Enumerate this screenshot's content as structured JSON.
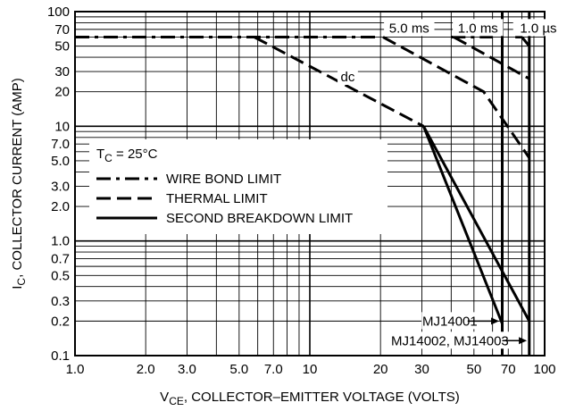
{
  "chart_data": {
    "type": "line",
    "x_scale": "log",
    "y_scale": "log",
    "xlim": [
      1,
      100
    ],
    "ylim": [
      0.1,
      100
    ],
    "grid": true,
    "xlabel": {
      "main": "V",
      "sub": "CE",
      "rest": ", COLLECTOR–EMITTER VOLTAGE (VOLTS)"
    },
    "ylabel": {
      "main": "I",
      "sub": "C",
      "rest": ", COLLECTOR CURRENT (AMP)"
    },
    "x_ticks": [
      {
        "value": 1,
        "label": "1.0"
      },
      {
        "value": 2,
        "label": "2.0"
      },
      {
        "value": 3,
        "label": "3.0"
      },
      {
        "value": 5,
        "label": "5.0"
      },
      {
        "value": 7,
        "label": "7.0"
      },
      {
        "value": 10,
        "label": "10"
      },
      {
        "value": 20,
        "label": "20"
      },
      {
        "value": 30,
        "label": "30"
      },
      {
        "value": 50,
        "label": "50"
      },
      {
        "value": 70,
        "label": "70"
      },
      {
        "value": 100,
        "label": "100"
      }
    ],
    "y_ticks": [
      {
        "value": 0.1,
        "label": "0.1"
      },
      {
        "value": 0.2,
        "label": "0.2"
      },
      {
        "value": 0.3,
        "label": "0.3"
      },
      {
        "value": 0.5,
        "label": "0.5"
      },
      {
        "value": 0.7,
        "label": "0.7"
      },
      {
        "value": 1,
        "label": "1.0"
      },
      {
        "value": 2,
        "label": "2.0"
      },
      {
        "value": 3,
        "label": "3.0"
      },
      {
        "value": 5,
        "label": "5.0"
      },
      {
        "value": 7,
        "label": "7.0"
      },
      {
        "value": 10,
        "label": "10"
      },
      {
        "value": 20,
        "label": "20"
      },
      {
        "value": 30,
        "label": "30"
      },
      {
        "value": 50,
        "label": "50"
      },
      {
        "value": 70,
        "label": "70"
      },
      {
        "value": 100,
        "label": "100"
      }
    ],
    "series": [
      {
        "style": "wire-bond",
        "points": [
          [
            1,
            60
          ],
          [
            20,
            60
          ]
        ]
      },
      {
        "style": "wire-bond",
        "points": [
          [
            40,
            60
          ],
          [
            60,
            60
          ]
        ]
      },
      {
        "style": "wire-bond",
        "points": [
          [
            75,
            60
          ],
          [
            80,
            60
          ]
        ]
      },
      {
        "style": "thermal",
        "points": [
          [
            5.8,
            60
          ],
          [
            30.5,
            10
          ]
        ]
      },
      {
        "style": "thermal",
        "points": [
          [
            20.5,
            60
          ],
          [
            55,
            20
          ],
          [
            86,
            5.3
          ]
        ]
      },
      {
        "style": "thermal",
        "points": [
          [
            41,
            60
          ],
          [
            86,
            26
          ]
        ]
      },
      {
        "style": "thermal",
        "points": [
          [
            80,
            60
          ],
          [
            86,
            50
          ]
        ]
      },
      {
        "style": "second-breakdown",
        "points": [
          [
            30.5,
            10
          ],
          [
            66,
            0.19
          ]
        ]
      },
      {
        "style": "second-breakdown",
        "points": [
          [
            30.5,
            10
          ],
          [
            86,
            0.2
          ]
        ]
      },
      {
        "style": "second-breakdown",
        "points": [
          [
            66,
            0.1
          ],
          [
            66,
            100
          ]
        ]
      },
      {
        "style": "second-breakdown",
        "points": [
          [
            86,
            0.1
          ],
          [
            86,
            100
          ]
        ]
      }
    ],
    "curve_labels": [
      {
        "text": "5.0 ms",
        "x": 26.5,
        "y": 72
      },
      {
        "text": "1.0 ms",
        "x": 52,
        "y": 72
      },
      {
        "text": "1.0 µs",
        "x": 94,
        "y": 72
      },
      {
        "text": "dc",
        "x": 14.5,
        "y": 27
      }
    ],
    "pointers": [
      {
        "text": "MJ14001",
        "label_x": 39.5,
        "y": 0.2,
        "arrow_from": 47,
        "arrow_to": 64
      },
      {
        "text": "MJ14002, MJ14003",
        "label_x": 39.5,
        "y": 0.135,
        "arrow_from": 66,
        "arrow_to": 84
      }
    ],
    "legend": {
      "title": {
        "main": "T",
        "sub": "C",
        "rest": " = 25°C"
      },
      "position": "middle-left",
      "entries": [
        {
          "style": "wire-bond",
          "label": "WIRE BOND LIMIT"
        },
        {
          "style": "thermal",
          "label": "THERMAL LIMIT"
        },
        {
          "style": "second-breakdown",
          "label": "SECOND BREAKDOWN LIMIT"
        }
      ]
    }
  }
}
